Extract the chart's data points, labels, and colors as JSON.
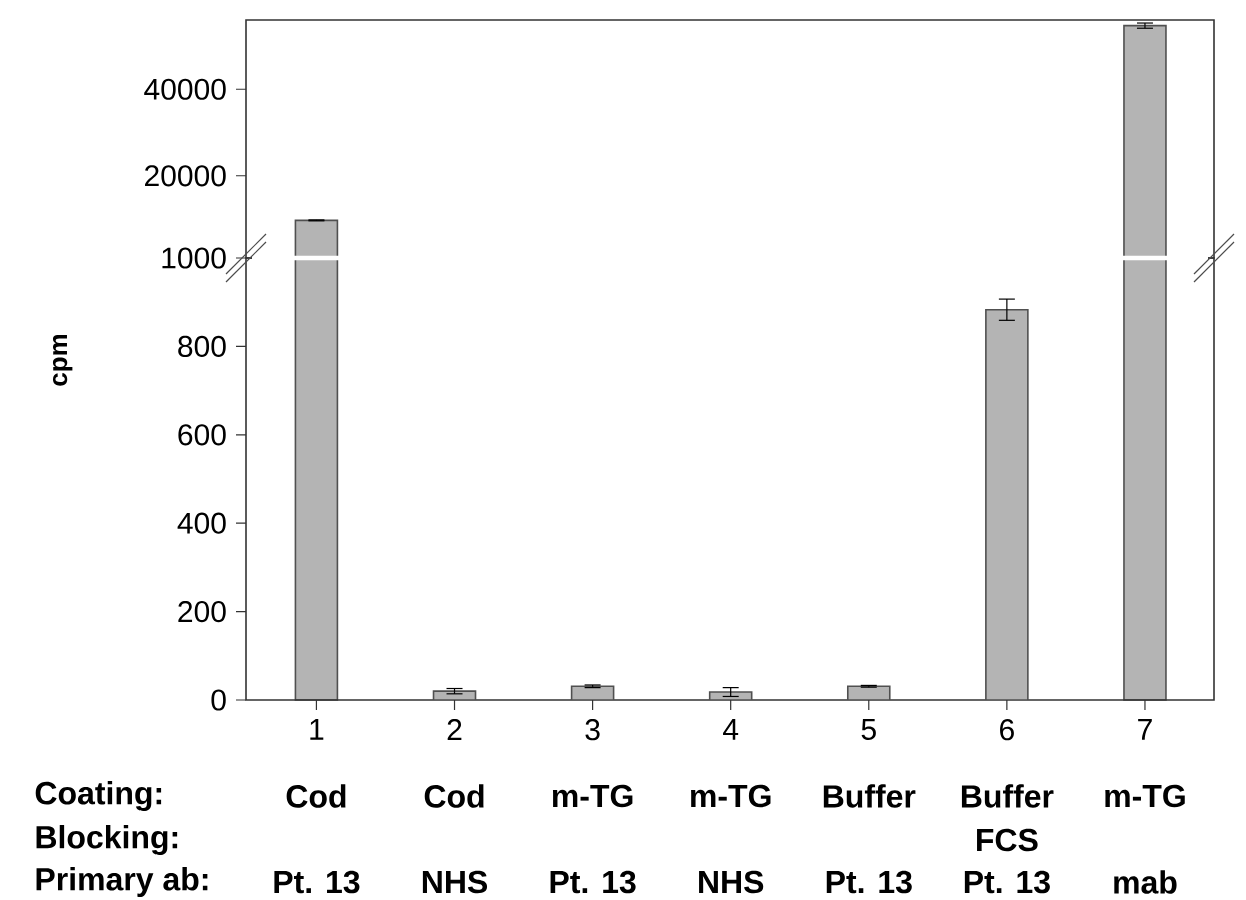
{
  "chart_data": [
    {
      "type": "bar",
      "categories": [
        "1",
        "2",
        "3",
        "4",
        "5",
        "6",
        "7"
      ],
      "values": [
        9700,
        null,
        null,
        null,
        null,
        null,
        54700
      ],
      "errors": [
        100,
        null,
        null,
        null,
        null,
        null,
        600
      ],
      "color": "#b4b4b4",
      "ylim": [
        1000,
        56000
      ],
      "yticks": [
        20000,
        40000
      ],
      "tick_labels": "y"
    },
    {
      "type": "bar",
      "ylabel": "cpm",
      "categories": [
        "1",
        "2",
        "3",
        "4",
        "5",
        "6",
        "7"
      ],
      "values": [
        null,
        20,
        31,
        18,
        31,
        883,
        null
      ],
      "errors": [
        null,
        6,
        3,
        10,
        2,
        24,
        null
      ],
      "color": "#b4b4b4",
      "ylim": [
        0,
        1000
      ],
      "yticks": [
        0,
        200,
        400,
        600,
        800,
        1000
      ],
      "annotations": [
        "Coating:",
        "Blocking:",
        "Primary ab:",
        "Cod",
        "Cod",
        "m-TG",
        "m-TG",
        "Buffer",
        "Buffer",
        "m-TG",
        null,
        null,
        null,
        null,
        null,
        "FCS",
        null,
        "Pt. 13",
        "NHS",
        "Pt. 13",
        "NHS",
        "Pt. 13",
        "Pt. 13",
        "mab"
      ]
    }
  ]
}
